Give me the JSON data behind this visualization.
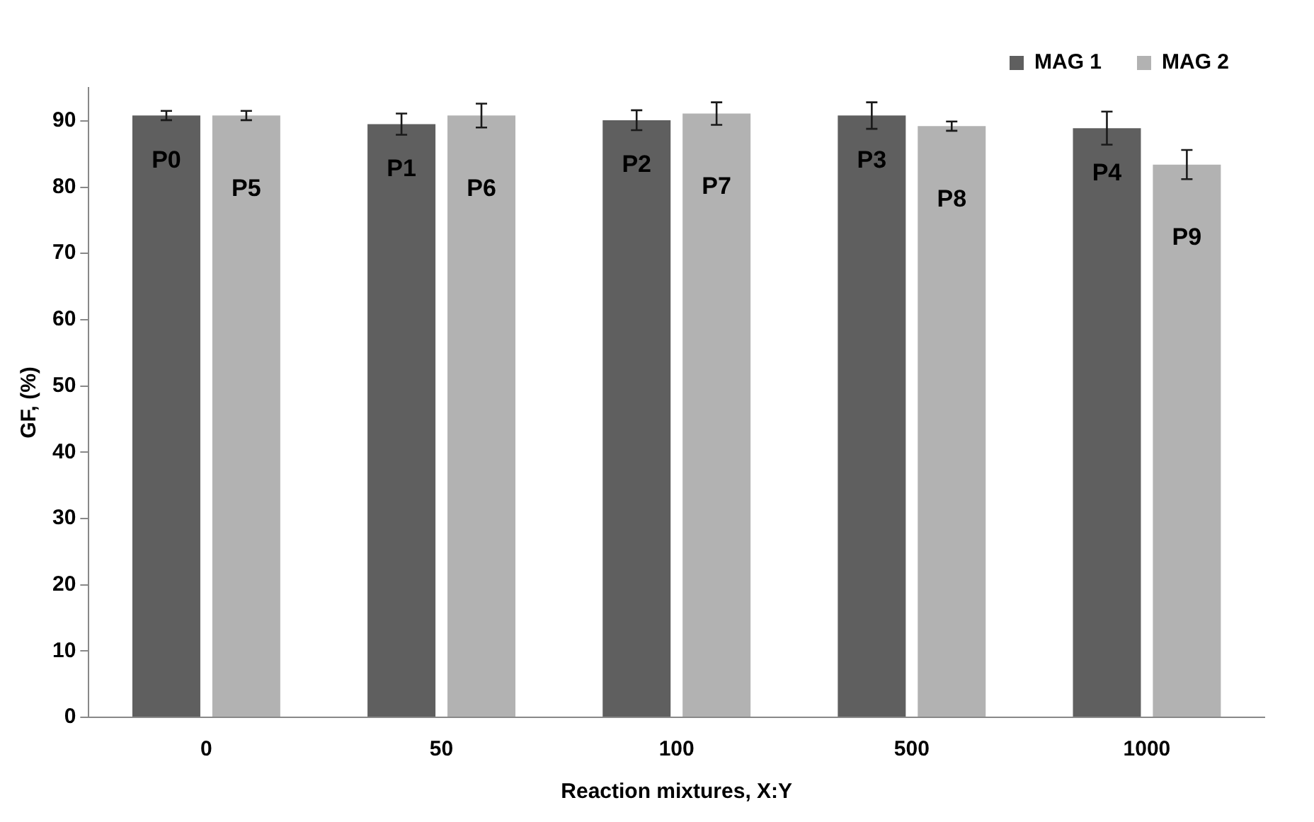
{
  "chart_data": {
    "type": "bar",
    "xlabel": "Reaction mixtures, X:Y",
    "ylabel": "GF, (%)",
    "categories": [
      "0",
      "50",
      "100",
      "500",
      "1000"
    ],
    "series": [
      {
        "name": "MAG 1",
        "color": "#5f5f5f",
        "values": [
          90.8,
          89.5,
          90.1,
          90.8,
          88.9
        ],
        "errors": [
          0.7,
          1.6,
          1.5,
          2.0,
          2.5
        ],
        "value_labels": [
          "P0",
          "P1",
          "P2",
          "P3",
          "P4"
        ]
      },
      {
        "name": "MAG 2",
        "color": "#b2b2b2",
        "values": [
          90.8,
          90.8,
          91.1,
          89.2,
          83.4
        ],
        "errors": [
          0.7,
          1.8,
          1.7,
          0.7,
          2.2
        ],
        "value_labels": [
          "P5",
          "P6",
          "P7",
          "P8",
          "P9"
        ]
      }
    ],
    "ylim": [
      0,
      95
    ],
    "yticks": [
      0,
      10,
      20,
      30,
      40,
      50,
      60,
      70,
      80,
      90
    ],
    "grid": false,
    "legend": "top right"
  }
}
